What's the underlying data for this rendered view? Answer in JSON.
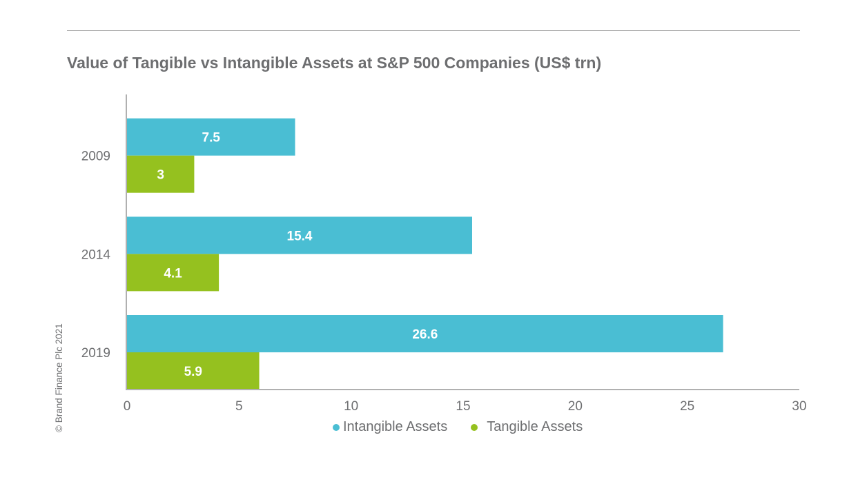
{
  "chart_data": {
    "type": "bar",
    "orientation": "horizontal",
    "title": "Value of Tangible vs Intangible Assets at S&P 500 Companies (US$ trn)",
    "categories": [
      "2009",
      "2014",
      "2019"
    ],
    "series": [
      {
        "name": "Intangible Assets",
        "color": "#4abed3",
        "values": [
          7.5,
          15.4,
          26.6
        ]
      },
      {
        "name": "Tangible Assets",
        "color": "#95c11f",
        "values": [
          3,
          4.1,
          5.9
        ]
      }
    ],
    "data_labels": [
      [
        "7.5",
        "15.4",
        "26.6"
      ],
      [
        "3",
        "4.1",
        "5.9"
      ]
    ],
    "xlim": [
      0,
      30
    ],
    "xticks": [
      "0",
      "5",
      "10",
      "15",
      "20",
      "25",
      "30"
    ],
    "xlabel": "",
    "ylabel": "",
    "grid": false,
    "legend": "bottom-center"
  },
  "footer": {
    "copyright": "© Brand Finance Plc 2021"
  }
}
